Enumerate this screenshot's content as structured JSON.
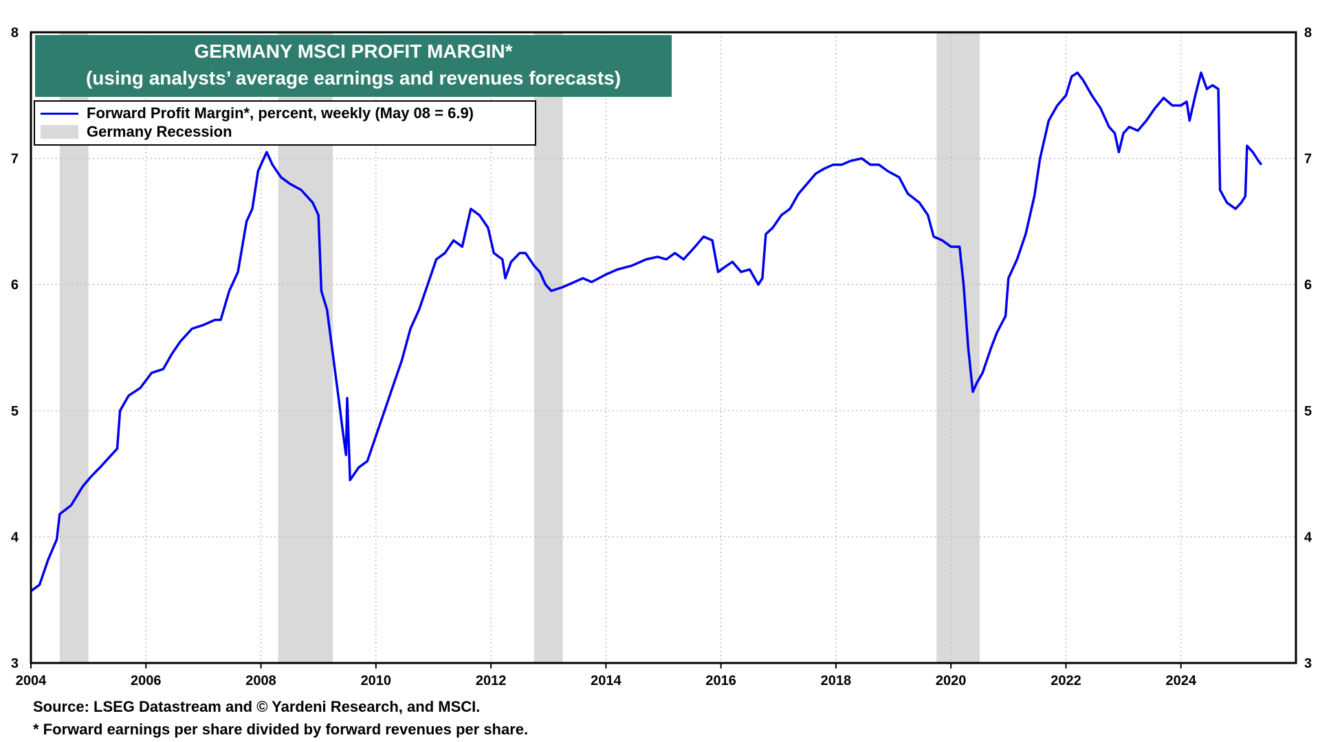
{
  "chart_data": {
    "type": "line",
    "title": "GERMANY MSCI PROFIT MARGIN*",
    "subtitle": "(using analysts’ average earnings and revenues forecasts)",
    "xlim": [
      2004,
      2026.0
    ],
    "ylim": [
      3,
      8
    ],
    "x_ticks": [
      2004,
      2006,
      2008,
      2010,
      2012,
      2014,
      2016,
      2018,
      2020,
      2022,
      2024
    ],
    "x_tick_labels": [
      "2004",
      "2006",
      "2008",
      "2010",
      "2012",
      "2014",
      "2016",
      "2018",
      "2020",
      "2022",
      "2024"
    ],
    "y_ticks": [
      3,
      4,
      5,
      6,
      7,
      8
    ],
    "y_tick_labels": [
      "3",
      "4",
      "5",
      "6",
      "7",
      "8"
    ],
    "grid": true,
    "legend_position": "top-left",
    "recessions": [
      [
        2004.5,
        2005.0
      ],
      [
        2008.3,
        2009.25
      ],
      [
        2012.75,
        2013.25
      ],
      [
        2019.75,
        2020.5
      ]
    ],
    "series": [
      {
        "name": "Forward Profit Margin*, percent, weekly (May 08 = 6.9)",
        "color": "#0000ee",
        "points": [
          [
            2004.0,
            3.57
          ],
          [
            2004.15,
            3.62
          ],
          [
            2004.3,
            3.82
          ],
          [
            2004.45,
            3.98
          ],
          [
            2004.5,
            4.18
          ],
          [
            2004.7,
            4.25
          ],
          [
            2004.9,
            4.4
          ],
          [
            2005.05,
            4.48
          ],
          [
            2005.2,
            4.55
          ],
          [
            2005.5,
            4.7
          ],
          [
            2005.55,
            5.0
          ],
          [
            2005.7,
            5.12
          ],
          [
            2005.9,
            5.18
          ],
          [
            2006.1,
            5.3
          ],
          [
            2006.3,
            5.33
          ],
          [
            2006.45,
            5.45
          ],
          [
            2006.6,
            5.55
          ],
          [
            2006.8,
            5.65
          ],
          [
            2007.0,
            5.68
          ],
          [
            2007.2,
            5.72
          ],
          [
            2007.3,
            5.72
          ],
          [
            2007.45,
            5.95
          ],
          [
            2007.6,
            6.1
          ],
          [
            2007.75,
            6.5
          ],
          [
            2007.85,
            6.6
          ],
          [
            2007.95,
            6.9
          ],
          [
            2008.1,
            7.05
          ],
          [
            2008.2,
            6.95
          ],
          [
            2008.35,
            6.85
          ],
          [
            2008.5,
            6.8
          ],
          [
            2008.7,
            6.75
          ],
          [
            2008.9,
            6.65
          ],
          [
            2009.0,
            6.55
          ],
          [
            2009.05,
            5.95
          ],
          [
            2009.15,
            5.8
          ],
          [
            2009.25,
            5.45
          ],
          [
            2009.35,
            5.1
          ],
          [
            2009.42,
            4.85
          ],
          [
            2009.48,
            4.65
          ],
          [
            2009.5,
            5.1
          ],
          [
            2009.55,
            4.45
          ],
          [
            2009.7,
            4.55
          ],
          [
            2009.85,
            4.6
          ],
          [
            2010.0,
            4.8
          ],
          [
            2010.15,
            5.0
          ],
          [
            2010.3,
            5.2
          ],
          [
            2010.45,
            5.4
          ],
          [
            2010.6,
            5.65
          ],
          [
            2010.75,
            5.8
          ],
          [
            2010.9,
            6.0
          ],
          [
            2011.05,
            6.2
          ],
          [
            2011.2,
            6.25
          ],
          [
            2011.35,
            6.35
          ],
          [
            2011.5,
            6.3
          ],
          [
            2011.65,
            6.6
          ],
          [
            2011.8,
            6.55
          ],
          [
            2011.95,
            6.45
          ],
          [
            2012.05,
            6.25
          ],
          [
            2012.2,
            6.2
          ],
          [
            2012.25,
            6.05
          ],
          [
            2012.35,
            6.18
          ],
          [
            2012.5,
            6.25
          ],
          [
            2012.6,
            6.25
          ],
          [
            2012.75,
            6.15
          ],
          [
            2012.85,
            6.1
          ],
          [
            2012.95,
            6.0
          ],
          [
            2013.05,
            5.95
          ],
          [
            2013.25,
            5.98
          ],
          [
            2013.45,
            6.02
          ],
          [
            2013.6,
            6.05
          ],
          [
            2013.75,
            6.02
          ],
          [
            2014.0,
            6.08
          ],
          [
            2014.2,
            6.12
          ],
          [
            2014.45,
            6.15
          ],
          [
            2014.7,
            6.2
          ],
          [
            2014.9,
            6.22
          ],
          [
            2015.05,
            6.2
          ],
          [
            2015.2,
            6.25
          ],
          [
            2015.35,
            6.2
          ],
          [
            2015.55,
            6.3
          ],
          [
            2015.7,
            6.38
          ],
          [
            2015.85,
            6.35
          ],
          [
            2015.95,
            6.1
          ],
          [
            2016.1,
            6.15
          ],
          [
            2016.2,
            6.18
          ],
          [
            2016.35,
            6.1
          ],
          [
            2016.5,
            6.12
          ],
          [
            2016.65,
            6.0
          ],
          [
            2016.72,
            6.05
          ],
          [
            2016.78,
            6.4
          ],
          [
            2016.9,
            6.45
          ],
          [
            2017.05,
            6.55
          ],
          [
            2017.2,
            6.6
          ],
          [
            2017.35,
            6.72
          ],
          [
            2017.5,
            6.8
          ],
          [
            2017.65,
            6.88
          ],
          [
            2017.8,
            6.92
          ],
          [
            2017.95,
            6.95
          ],
          [
            2018.1,
            6.95
          ],
          [
            2018.25,
            6.98
          ],
          [
            2018.45,
            7.0
          ],
          [
            2018.6,
            6.95
          ],
          [
            2018.75,
            6.95
          ],
          [
            2018.9,
            6.9
          ],
          [
            2019.1,
            6.85
          ],
          [
            2019.25,
            6.72
          ],
          [
            2019.45,
            6.65
          ],
          [
            2019.6,
            6.55
          ],
          [
            2019.7,
            6.38
          ],
          [
            2019.85,
            6.35
          ],
          [
            2020.0,
            6.3
          ],
          [
            2020.15,
            6.3
          ],
          [
            2020.22,
            6.0
          ],
          [
            2020.3,
            5.5
          ],
          [
            2020.38,
            5.15
          ],
          [
            2020.45,
            5.22
          ],
          [
            2020.55,
            5.3
          ],
          [
            2020.7,
            5.5
          ],
          [
            2020.8,
            5.62
          ],
          [
            2020.95,
            5.75
          ],
          [
            2021.0,
            6.05
          ],
          [
            2021.15,
            6.2
          ],
          [
            2021.3,
            6.4
          ],
          [
            2021.45,
            6.7
          ],
          [
            2021.55,
            7.0
          ],
          [
            2021.7,
            7.3
          ],
          [
            2021.85,
            7.42
          ],
          [
            2022.0,
            7.5
          ],
          [
            2022.1,
            7.65
          ],
          [
            2022.2,
            7.68
          ],
          [
            2022.3,
            7.62
          ],
          [
            2022.45,
            7.5
          ],
          [
            2022.6,
            7.4
          ],
          [
            2022.75,
            7.25
          ],
          [
            2022.85,
            7.2
          ],
          [
            2022.92,
            7.05
          ],
          [
            2023.0,
            7.2
          ],
          [
            2023.1,
            7.25
          ],
          [
            2023.25,
            7.22
          ],
          [
            2023.4,
            7.3
          ],
          [
            2023.55,
            7.4
          ],
          [
            2023.7,
            7.48
          ],
          [
            2023.85,
            7.42
          ],
          [
            2024.0,
            7.42
          ],
          [
            2024.1,
            7.45
          ],
          [
            2024.15,
            7.3
          ],
          [
            2024.25,
            7.5
          ],
          [
            2024.35,
            7.68
          ],
          [
            2024.45,
            7.55
          ],
          [
            2024.55,
            7.58
          ],
          [
            2024.65,
            7.55
          ],
          [
            2024.68,
            6.75
          ],
          [
            2024.8,
            6.65
          ],
          [
            2024.95,
            6.6
          ],
          [
            2025.05,
            6.65
          ],
          [
            2025.12,
            6.7
          ],
          [
            2025.15,
            7.1
          ],
          [
            2025.25,
            7.05
          ],
          [
            2025.35,
            6.98
          ],
          [
            2025.4,
            6.95
          ]
        ]
      }
    ],
    "legend": {
      "series_label": "Forward Profit Margin*, percent, weekly (May 08 = 6.9)",
      "recession_label": "Germany Recession"
    },
    "footnotes": [
      "Source: LSEG Datastream and © Yardeni Research, and MSCI.",
      "* Forward earnings per share divided by forward revenues per share."
    ]
  },
  "colors": {
    "line": "#0000ee",
    "recession": "#d9d9d9",
    "title_bg": "#2e7d6e",
    "grid": "#bbbbbb"
  }
}
